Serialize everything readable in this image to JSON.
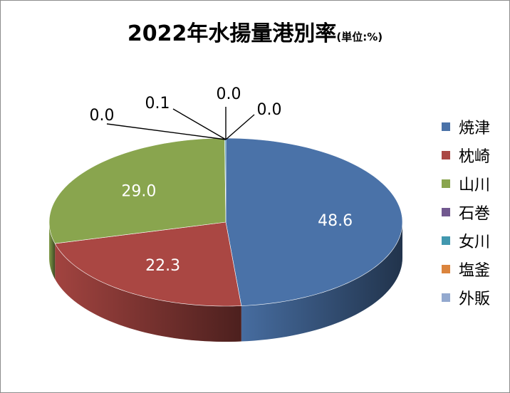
{
  "chart_data": {
    "type": "pie",
    "title": "2022年水揚量港別率",
    "unit_label": "(単位:%)",
    "categories": [
      "焼津",
      "枕崎",
      "山川",
      "石巻",
      "女川",
      "塩釜",
      "外販"
    ],
    "values": [
      48.6,
      22.3,
      29.0,
      0.0,
      0.1,
      0.0,
      0.0
    ],
    "data_labels": [
      "48.6",
      "22.3",
      "29.0",
      "0.0",
      "0.1",
      "0.0",
      "0.0"
    ],
    "colors": [
      "#4a72a8",
      "#aa4743",
      "#89a54e",
      "#71588f",
      "#4298af",
      "#db843d",
      "#93a9cf"
    ],
    "legend_position": "right",
    "style": "3d"
  }
}
